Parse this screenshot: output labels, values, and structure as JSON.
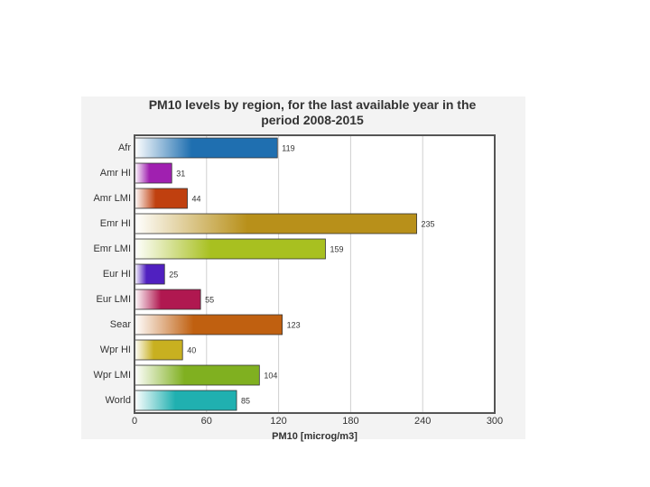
{
  "chart_data": {
    "type": "bar",
    "orientation": "horizontal",
    "title": "PM10 levels by region, for the last available year in the period 2008-2015",
    "x_label": "PM10 [microg/m3]",
    "categories": [
      "Afr",
      "Amr HI",
      "Amr LMI",
      "Emr HI",
      "Emr LMI",
      "Eur HI",
      "Eur LMI",
      "Sear",
      "Wpr HI",
      "Wpr LMI",
      "World"
    ],
    "values": [
      119,
      31,
      44,
      235,
      159,
      25,
      55,
      123,
      40,
      104,
      85
    ],
    "colors": [
      "#1f6fb0",
      "#a020b0",
      "#c0400f",
      "#b8901a",
      "#a8c020",
      "#5020c0",
      "#b01850",
      "#c06010",
      "#c8b020",
      "#80b020",
      "#20b0b0"
    ],
    "xlim": [
      0,
      300
    ],
    "xticks": [
      0,
      60,
      120,
      180,
      240,
      300
    ],
    "grid": true
  }
}
